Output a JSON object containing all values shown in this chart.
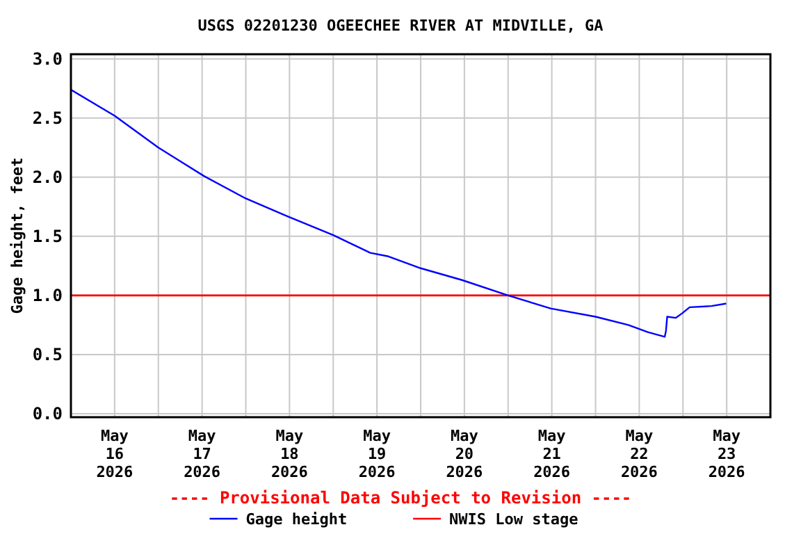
{
  "chart_data": {
    "type": "line",
    "title": "USGS 02201230 OGEECHEE RIVER AT MIDVILLE, GA",
    "ylabel": "Gage height, feet",
    "annotations": [
      "---- Provisional Data Subject to Revision ----"
    ],
    "x": [
      "2026-05-16T00:00",
      "2026-05-16T12:00",
      "2026-05-17T00:00",
      "2026-05-17T12:30",
      "2026-05-18T00:00",
      "2026-05-18T11:20",
      "2026-05-19T00:00",
      "2026-05-19T10:10",
      "2026-05-19T15:10",
      "2026-05-20T00:00",
      "2026-05-20T11:20",
      "2026-05-21T00:00",
      "2026-05-21T11:40",
      "2026-05-22T00:00",
      "2026-05-22T09:00",
      "2026-05-22T14:20",
      "2026-05-22T19:00",
      "2026-05-22T19:20",
      "2026-05-22T19:40",
      "2026-05-22T22:00",
      "2026-05-22T23:50",
      "2026-05-23T01:50",
      "2026-05-23T07:50",
      "2026-05-23T11:40"
    ],
    "series": [
      {
        "name": "Gage height",
        "color": "#0000ff",
        "values": [
          2.74,
          2.52,
          2.25,
          2.01,
          1.82,
          1.67,
          1.51,
          1.36,
          1.33,
          1.23,
          1.13,
          1.0,
          0.89,
          0.82,
          0.75,
          0.69,
          0.65,
          0.7,
          0.82,
          0.81,
          0.85,
          0.9,
          0.91,
          0.93
        ]
      }
    ],
    "ref_lines": [
      {
        "axis": "y",
        "value": 1.0,
        "label": "NWIS Low stage",
        "color": "#ff0000"
      }
    ],
    "xlim": [
      "2026-05-16T00:00",
      "2026-05-24T00:00"
    ],
    "xticks": [
      {
        "value": "2026-05-16T12:00",
        "label": "May\n16\n2026"
      },
      {
        "value": "2026-05-17T00:00",
        "label": null
      },
      {
        "value": "2026-05-17T12:00",
        "label": "May\n17\n2026"
      },
      {
        "value": "2026-05-18T00:00",
        "label": null
      },
      {
        "value": "2026-05-18T12:00",
        "label": "May\n18\n2026"
      },
      {
        "value": "2026-05-19T00:00",
        "label": null
      },
      {
        "value": "2026-05-19T12:00",
        "label": "May\n19\n2026"
      },
      {
        "value": "2026-05-20T00:00",
        "label": null
      },
      {
        "value": "2026-05-20T12:00",
        "label": "May\n20\n2026"
      },
      {
        "value": "2026-05-21T00:00",
        "label": null
      },
      {
        "value": "2026-05-21T12:00",
        "label": "May\n21\n2026"
      },
      {
        "value": "2026-05-22T00:00",
        "label": null
      },
      {
        "value": "2026-05-22T12:00",
        "label": "May\n22\n2026"
      },
      {
        "value": "2026-05-23T00:00",
        "label": null
      },
      {
        "value": "2026-05-23T12:00",
        "label": "May\n23\n2026"
      }
    ],
    "ylim": [
      -0.03,
      3.04
    ],
    "yticks": [
      {
        "value": 0,
        "label": "0.0"
      },
      {
        "value": 0.5,
        "label": "0.5"
      },
      {
        "value": 1,
        "label": "1.0"
      },
      {
        "value": 1.5,
        "label": "1.5"
      },
      {
        "value": 2,
        "label": "2.0"
      },
      {
        "value": 2.5,
        "label": "2.5"
      },
      {
        "value": 3,
        "label": "3.0"
      }
    ],
    "grid": true,
    "legend": "bottom"
  }
}
